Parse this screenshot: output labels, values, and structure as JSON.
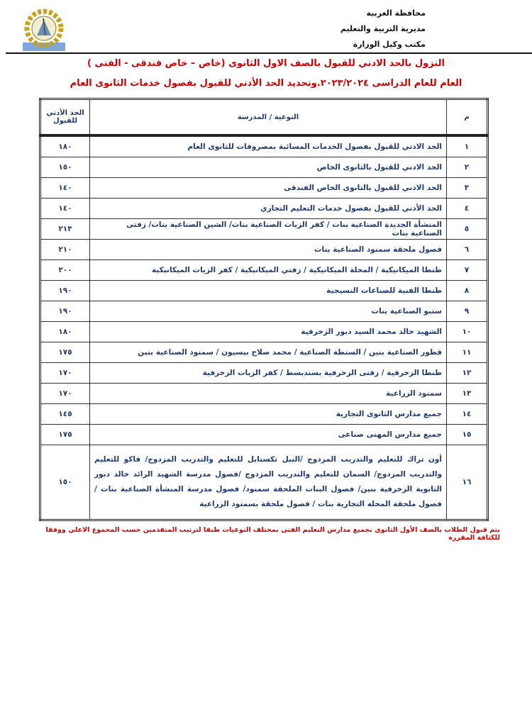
{
  "header": {
    "lines": [
      "محافظة الغربية",
      "مديرية التربية والتعليم",
      "مكتب وكيل الوزارة"
    ]
  },
  "titles": {
    "line1": "النزول بالحد الادني للقبول بالصف الاول الثانوى (خاص – خاص فندقى  - الفنى )",
    "line2": "العام للعام الدراسى  ٢٠٢٣/٢٠٢٤.وتحديد الحد الأدني للقبول بفصول خدمات الثانوى العام"
  },
  "table": {
    "headers": {
      "num": "م",
      "school": "النوعية / المدرسة",
      "min": "الحد الأدني للقبول"
    },
    "rows": [
      {
        "num": "١",
        "school": "الحد الادني للقبول بفصول الخدمات المسائية  بمصروفات للثانوى العام",
        "min": "١٨٠"
      },
      {
        "num": "٢",
        "school": "الحد الادني للقبول بالثانوى الخاص",
        "min": "١٥٠"
      },
      {
        "num": "٣",
        "school": "الحد الادني للقبول بالثانوى الخاص الفندقى",
        "min": "١٤٠"
      },
      {
        "num": "٤",
        "school": "الحد الأدني للقبول بفصول خدمات التعليم التجاري",
        "min": "١٤٠"
      },
      {
        "num": "٥",
        "school": "المنشأة الجديدة الصناعية بنات / كفر الزيات الصناعية بنات/ الشين الصناعية بنات/ زفتى الصناعية بنات",
        "min": "٢١٣"
      },
      {
        "num": "٦",
        "school": "فصول ملحقة سمنود الصناعية بنات",
        "min": "٢١٠"
      },
      {
        "num": "٧",
        "school": "طنطا الميكانيكية / المحلة الميكانيكية / زفتي الميكانيكية / كفر الزيات الميكانيكية",
        "min": "٢٠٠"
      },
      {
        "num": "٨",
        "school": "طنطا الفنية للصناعات  النسيجية",
        "min": "١٩٠"
      },
      {
        "num": "٩",
        "school": "سنبو الصناعية بنات",
        "min": "١٩٠"
      },
      {
        "num": "١٠",
        "school": "الشهيد خالد محمد السيد دبور الزخرفية",
        "min": "١٨٠"
      },
      {
        "num": "١١",
        "school": "قطور الصناعية بنين / السنطة الصناعية / محمد صلاح بيسيون  / سمنود الصناعية بنين",
        "min": "١٧٥"
      },
      {
        "num": "١٢",
        "school": "طنطا الزخرفية / زفتى الزخرفية بسندبسط    / كفر الزيات الزخرفية",
        "min": "١٧٠"
      },
      {
        "num": "١٣",
        "school": "سمنود الزراعية",
        "min": "١٧٠"
      },
      {
        "num": "١٤",
        "school": "جميع مدارس الثانوى التجارية",
        "min": "١٤٥"
      },
      {
        "num": "١٥",
        "school": "جميع مدارس المهنى صناعى",
        "min": "١٧٥"
      },
      {
        "num": "١٦",
        "school": "أون تراك للتعليم والتدريب المزدوج /النيل تكستايل للتعليم والتدريب المزدوج/ فاكو للتعليم والتدريب المزدوج/ السمان للتعليم والتدريب المزدوج /فصول مدرسة الشهيد الرائد خالد دبور الثانوية الزخرفية بنين/ فصول البنات الملحقة سمنود/ فصول مدرسة المنشأة الصناعية بنات / فصول ملحقة المحلة التجارية بنات / فصول ملحقة بسمنود الزراعية",
        "min": "١٥٠"
      }
    ]
  },
  "note": "يتم قبول الطلاب بالصف الأول الثانوى بجميع مدارس التعليم الفنى بمختلف النوعيات طبقا لترتيب المتقدمين حسب المجموع الاعلي ووفقا للكثافة المقررة",
  "colors": {
    "title": "#cc0000",
    "table_text": "#1f3a6e"
  }
}
